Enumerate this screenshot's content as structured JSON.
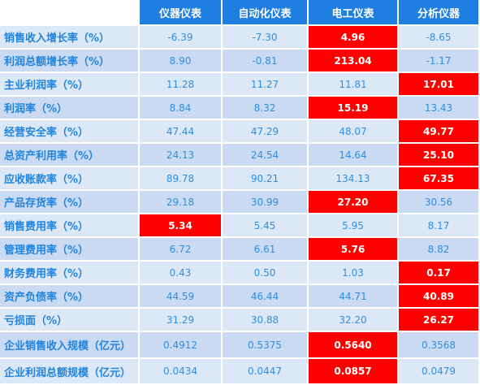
{
  "table": {
    "headers": [
      "",
      "仪器仪表",
      "自动化仪表",
      "电工仪表",
      "分析仪器"
    ],
    "highlight_color": "#ff0000",
    "header_color": "#1e7fe0",
    "rows": [
      {
        "label": "销售收入增长率（%）",
        "values": [
          "-6.39",
          "-7.30",
          "4.96",
          "-8.65"
        ],
        "highlight": 2
      },
      {
        "label": "利润总额增长率（%）",
        "values": [
          "8.90",
          "-0.81",
          "213.04",
          "-1.17"
        ],
        "highlight": 2
      },
      {
        "label": "主业利润率（%）",
        "values": [
          "11.28",
          "11.27",
          "11.81",
          "17.01"
        ],
        "highlight": 3
      },
      {
        "label": "利润率（%）",
        "values": [
          "8.84",
          "8.32",
          "15.19",
          "13.43"
        ],
        "highlight": 2
      },
      {
        "label": "经营安全率（%）",
        "values": [
          "47.44",
          "47.29",
          "48.07",
          "49.77"
        ],
        "highlight": 3
      },
      {
        "label": "总资产利用率（%）",
        "values": [
          "24.13",
          "24.54",
          "14.64",
          "25.10"
        ],
        "highlight": 3
      },
      {
        "label": "应收账款率（%）",
        "values": [
          "89.78",
          "90.21",
          "134.13",
          "67.35"
        ],
        "highlight": 3
      },
      {
        "label": "产品存货率（%）",
        "values": [
          "29.18",
          "30.99",
          "27.20",
          "30.56"
        ],
        "highlight": 2
      },
      {
        "label": "销售费用率（%）",
        "values": [
          "5.34",
          "5.45",
          "5.95",
          "8.17"
        ],
        "highlight": 0
      },
      {
        "label": "管理费用率（%）",
        "values": [
          "6.72",
          "6.61",
          "5.76",
          "8.82"
        ],
        "highlight": 2
      },
      {
        "label": "财务费用率（%）",
        "values": [
          "0.43",
          "0.50",
          "1.03",
          "0.17"
        ],
        "highlight": 3
      },
      {
        "label": "资产负债率（%）",
        "values": [
          "44.59",
          "46.44",
          "44.71",
          "40.89"
        ],
        "highlight": 3
      },
      {
        "label": "亏损面（%）",
        "values": [
          "31.29",
          "30.88",
          "32.20",
          "26.27"
        ],
        "highlight": 3
      },
      {
        "label": "企业销售收入规模（亿元）",
        "values": [
          "0.4912",
          "0.5375",
          "0.5640",
          "0.3568"
        ],
        "highlight": 2
      },
      {
        "label": "企业利润总额规模（亿元）",
        "values": [
          "0.0434",
          "0.0447",
          "0.0857",
          "0.0479"
        ],
        "highlight": 2
      }
    ]
  }
}
